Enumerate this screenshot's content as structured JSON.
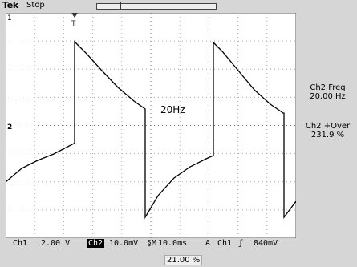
{
  "header": {
    "brand": "Tek",
    "status": "Stop"
  },
  "screen": {
    "channel1_marker": "1",
    "channel2_marker": "2",
    "annotation": "20Hz",
    "trigger_marker": "T"
  },
  "measurements": {
    "freq_label": "Ch2 Freq",
    "freq_value": "20.00 Hz",
    "over_label": "Ch2 +Over",
    "over_value": "231.9 %"
  },
  "status_bar": {
    "ch1_label": "Ch1",
    "ch1_scale": "2.00 V",
    "ch2_label": "Ch2",
    "ch2_scale": "10.0mV",
    "bw_symbol": "§",
    "time_label": "M",
    "time_scale": "10.0ms",
    "trigger_label": "A",
    "trigger_channel": "Ch1",
    "trigger_slope": "ʃ",
    "trigger_level": "840mV"
  },
  "horizontal_position": "21.00 %",
  "colors": {
    "background": "#d6d6d6",
    "screen": "#ffffff",
    "trace": "#000000",
    "grid": "#888888"
  }
}
